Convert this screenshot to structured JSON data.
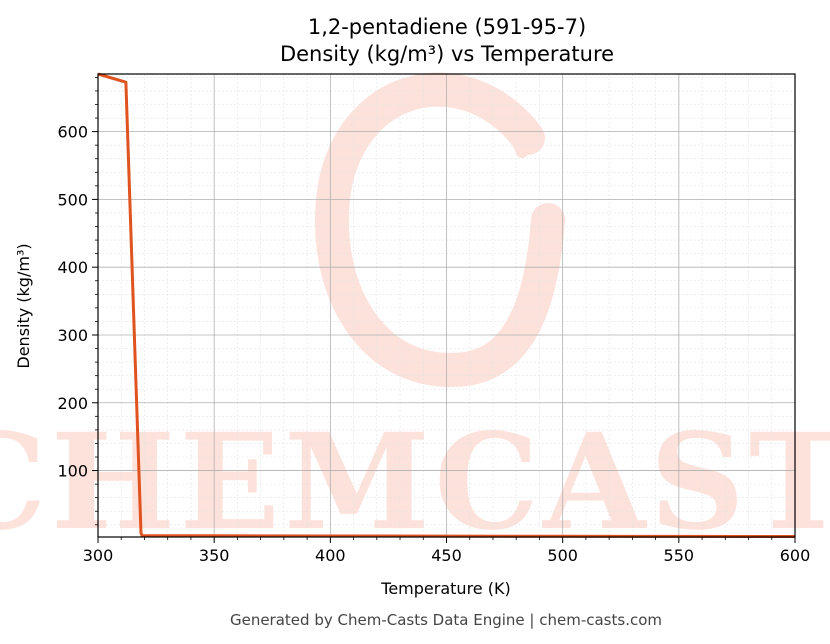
{
  "chart_data": {
    "type": "line",
    "title": "1,2-pentadiene (591-95-7)",
    "subtitle": "Density (kg/m³) vs Temperature",
    "xlabel": "Temperature (K)",
    "ylabel": "Density (kg/m³)",
    "xlim": [
      300,
      600
    ],
    "ylim": [
      2,
      685
    ],
    "x_ticks": [
      300,
      350,
      400,
      450,
      500,
      550,
      600
    ],
    "y_ticks": [
      100,
      200,
      300,
      400,
      500,
      600
    ],
    "grid": true,
    "series": [
      {
        "color": "#e05320",
        "x": [
          300,
          312,
          318.5,
          319,
          350,
          400,
          450,
          500,
          550,
          600
        ],
        "y": [
          685,
          673,
          8,
          4,
          3.8,
          3.5,
          3.3,
          3.1,
          2.9,
          2.8
        ]
      }
    ]
  },
  "watermark": {
    "text": "CHEMCASTS",
    "color": "#fde0da"
  },
  "footer": "Generated by Chem-Casts Data Engine | chem-casts.com"
}
